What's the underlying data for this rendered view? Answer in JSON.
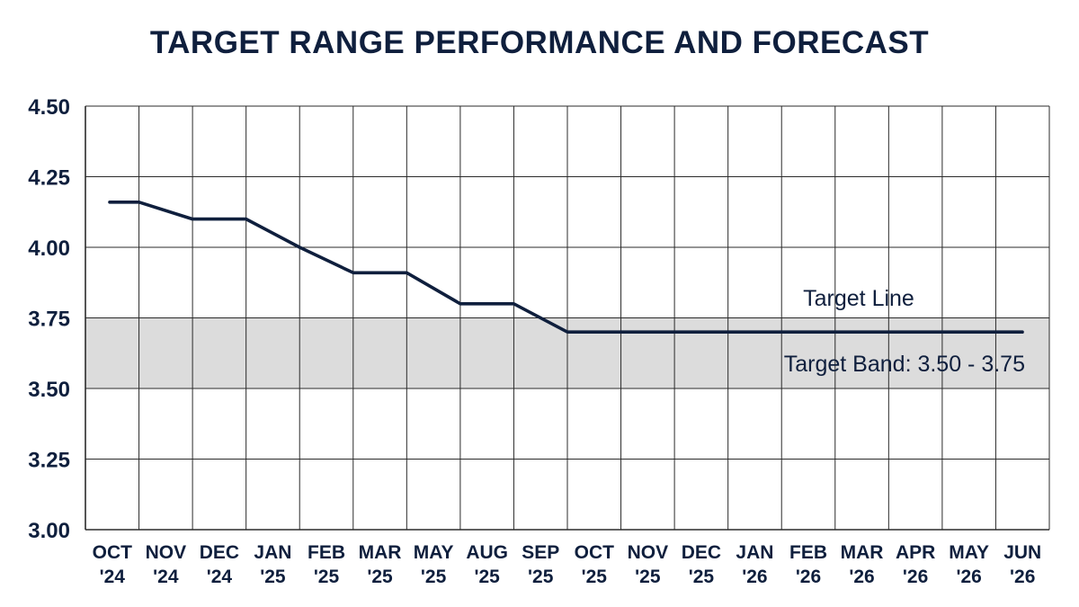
{
  "chart_data": {
    "type": "line",
    "title": "TARGET RANGE PERFORMANCE AND FORECAST",
    "xlabel": "",
    "ylabel": "",
    "categories": [
      "OCT '24",
      "NOV '24",
      "DEC '24",
      "JAN '25",
      "FEB '25",
      "MAR '25",
      "MAY '25",
      "AUG '25",
      "SEP '25",
      "OCT '25",
      "NOV '25",
      "DEC '25",
      "JAN '26",
      "FEB '26",
      "MAR '26",
      "APR '26",
      "MAY '26",
      "JUN '26"
    ],
    "category_lines": [
      [
        "OCT",
        "'24"
      ],
      [
        "NOV",
        "'24"
      ],
      [
        "DEC",
        "'24"
      ],
      [
        "JAN",
        "'25"
      ],
      [
        "FEB",
        "'25"
      ],
      [
        "MAR",
        "'25"
      ],
      [
        "MAY",
        "'25"
      ],
      [
        "AUG",
        "'25"
      ],
      [
        "SEP",
        "'25"
      ],
      [
        "OCT",
        "'25"
      ],
      [
        "NOV",
        "'25"
      ],
      [
        "DEC",
        "'25"
      ],
      [
        "JAN",
        "'26"
      ],
      [
        "FEB",
        "'26"
      ],
      [
        "MAR",
        "'26"
      ],
      [
        "APR",
        "'26"
      ],
      [
        "MAY",
        "'26"
      ],
      [
        "JUN",
        "'26"
      ]
    ],
    "series": [
      {
        "points": [
          [
            0,
            4.16
          ],
          [
            1,
            4.16
          ],
          [
            2,
            4.1
          ],
          [
            3,
            4.1
          ],
          [
            4,
            4.0
          ],
          [
            5,
            3.91
          ],
          [
            6,
            3.91
          ],
          [
            7,
            3.8
          ],
          [
            8,
            3.8
          ],
          [
            9,
            3.7
          ],
          [
            10,
            3.7
          ],
          [
            11,
            3.7
          ],
          [
            12,
            3.7
          ],
          [
            13,
            3.7
          ],
          [
            14,
            3.7
          ],
          [
            15,
            3.7
          ],
          [
            16,
            3.7
          ],
          [
            17,
            3.7
          ]
        ]
      }
    ],
    "band": {
      "low": 3.5,
      "high": 3.75,
      "label": "Target Band: 3.50 - 3.75"
    },
    "line_label": "Target Line",
    "ylim": [
      3.0,
      4.5
    ],
    "yticks": [
      "3.00",
      "3.25",
      "3.50",
      "3.75",
      "4.00",
      "4.25",
      "4.50"
    ],
    "grid": true,
    "legend": "none",
    "colors": {
      "line": "#0f1f3d",
      "band": "#dcdcdc",
      "grid": "#2b2b2b",
      "text": "#0f1f3d"
    }
  }
}
